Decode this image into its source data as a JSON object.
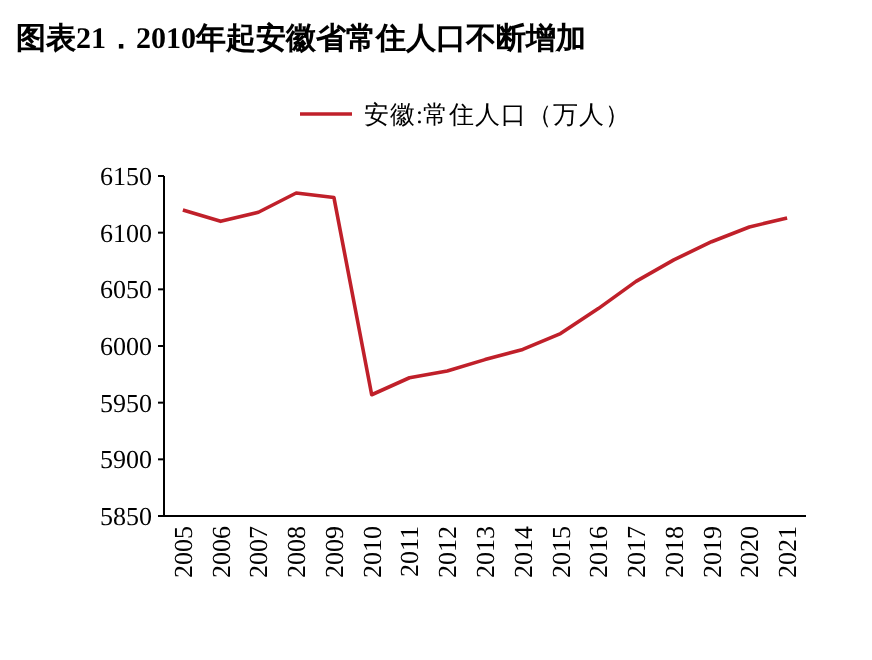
{
  "chart_data": {
    "type": "line",
    "title": "图表21．2010年起安徽省常住人口不断增加",
    "categories": [
      "2005",
      "2006",
      "2007",
      "2008",
      "2009",
      "2010",
      "2011",
      "2012",
      "2013",
      "2014",
      "2015",
      "2016",
      "2017",
      "2018",
      "2019",
      "2020",
      "2021"
    ],
    "series": [
      {
        "name": "安徽:常住人口（万人）",
        "color": "#c0202a",
        "values": [
          6120,
          6110,
          6118,
          6135,
          6131,
          5957,
          5972,
          5978,
          5988,
          5997,
          6011,
          6033,
          6057,
          6076,
          6092,
          6105,
          6113
        ]
      }
    ],
    "ylim": [
      5850,
      6150
    ],
    "yticks": [
      5850,
      5900,
      5950,
      6000,
      6050,
      6100,
      6150
    ],
    "legend": "top"
  }
}
